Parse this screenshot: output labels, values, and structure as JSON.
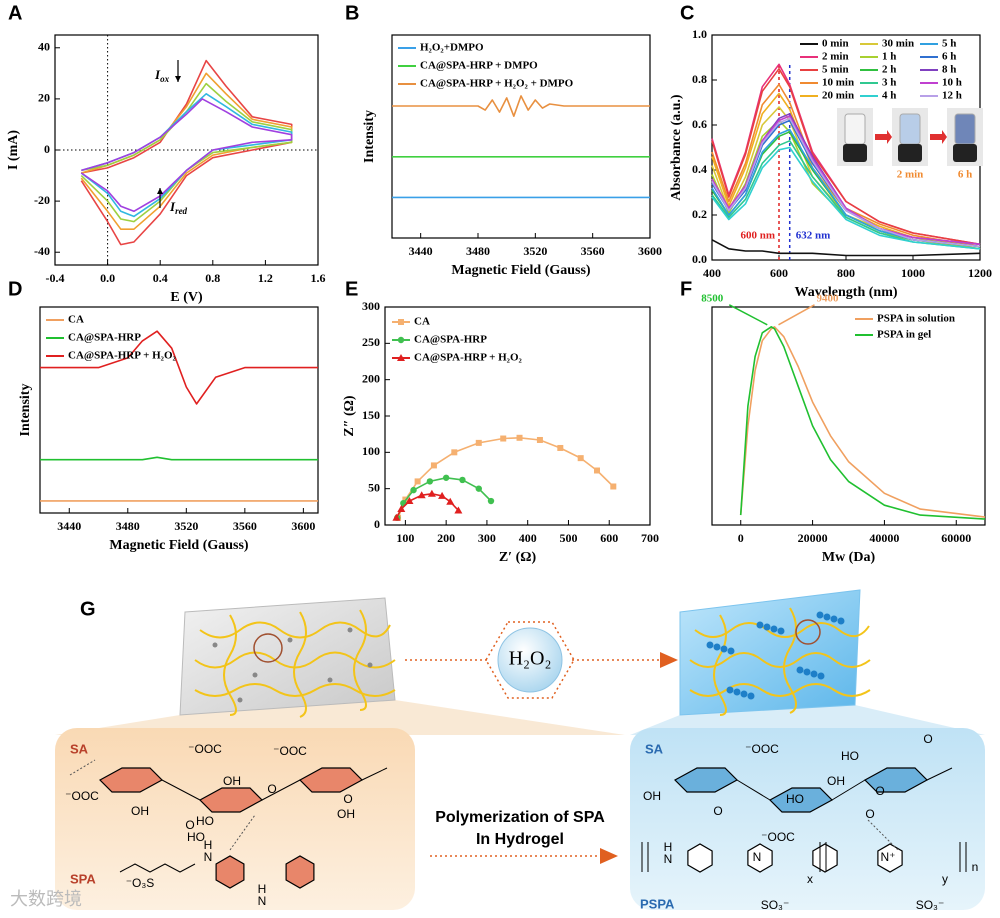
{
  "chart_data": [
    {
      "panel": "A",
      "type": "line",
      "xlabel": "E (V)",
      "ylabel": "I (mA)",
      "xlim": [
        -0.4,
        1.6
      ],
      "xticks": [
        -0.4,
        {
          "value": 0,
          "label": "0.0"
        },
        0.4,
        0.8,
        1.2,
        1.6
      ],
      "ylim": [
        -45,
        45
      ],
      "yticks": [
        -40,
        -20,
        0,
        20,
        40
      ],
      "zero_lines": true,
      "grid": false,
      "annotations": [
        {
          "text": "I",
          "sub": "ox"
        },
        {
          "text": "I",
          "sub": "red"
        }
      ],
      "series": [
        {
          "color": "#e84545",
          "x": [
            -0.2,
            0,
            0.2,
            0.4,
            0.6,
            0.75,
            0.9,
            1.1,
            1.4,
            1.4,
            1.1,
            0.8,
            0.6,
            0.4,
            0.2,
            0.1,
            0,
            -0.2
          ],
          "values": [
            -9,
            -7,
            -3,
            3,
            18,
            35,
            25,
            13,
            10,
            3,
            0,
            -3,
            -10,
            -25,
            -36,
            -37,
            -28,
            -12
          ]
        },
        {
          "color": "#f0a030",
          "x": [
            -0.2,
            0,
            0.2,
            0.4,
            0.6,
            0.75,
            0.9,
            1.1,
            1.4,
            1.4,
            1.1,
            0.8,
            0.6,
            0.4,
            0.2,
            0.1,
            0,
            -0.2
          ],
          "values": [
            -9,
            -6,
            -2,
            4,
            17,
            30,
            22,
            12,
            9,
            3,
            1,
            -2,
            -9,
            -22,
            -31,
            -31,
            -24,
            -11
          ]
        },
        {
          "color": "#9ed040",
          "x": [
            -0.2,
            0,
            0.2,
            0.4,
            0.6,
            0.75,
            0.9,
            1.1,
            1.4,
            1.4,
            1.1,
            0.8,
            0.6,
            0.4,
            0.2,
            0.1,
            0,
            -0.2
          ],
          "values": [
            -8,
            -6,
            -2,
            4,
            15,
            26,
            19,
            11,
            8,
            3,
            1,
            -1,
            -8,
            -20,
            -28,
            -27,
            -20,
            -10
          ]
        },
        {
          "color": "#30b8e0",
          "x": [
            -0.2,
            0,
            0.2,
            0.4,
            0.6,
            0.75,
            0.9,
            1.1,
            1.4,
            1.4,
            1.1,
            0.8,
            0.6,
            0.4,
            0.2,
            0.1,
            0,
            -0.2
          ],
          "values": [
            -8,
            -5,
            -1,
            5,
            15,
            22,
            17,
            10,
            7,
            4,
            2,
            0,
            -8,
            -19,
            -26,
            -24,
            -17,
            -9
          ]
        },
        {
          "color": "#a040e0",
          "x": [
            -0.2,
            0,
            0.2,
            0.4,
            0.6,
            0.72,
            0.9,
            1.1,
            1.4,
            1.4,
            1.1,
            0.8,
            0.6,
            0.4,
            0.2,
            0.1,
            0,
            -0.2
          ],
          "values": [
            -8,
            -5,
            -1,
            5,
            14,
            20,
            15,
            9,
            6,
            4,
            3,
            0,
            -8,
            -18,
            -24,
            -22,
            -16,
            -9
          ]
        }
      ]
    },
    {
      "panel": "B",
      "type": "line",
      "xlabel": "Magnetic Field (Gauss)",
      "ylabel": "Intensity",
      "xlim": [
        3420,
        3600
      ],
      "xticks": [
        3440,
        3480,
        3520,
        3560,
        3600
      ],
      "ylim": [
        0,
        10
      ],
      "legend": "upper left",
      "x": [
        3420,
        3460,
        3480,
        3485,
        3490,
        3495,
        3500,
        3505,
        3510,
        3515,
        3520,
        3525,
        3530,
        3540,
        3560,
        3600
      ],
      "series": [
        {
          "name": "H₂O₂+DMPO",
          "color": "#3aa0e8",
          "values": [
            2,
            2,
            2,
            2,
            2,
            2,
            2,
            2,
            2,
            2,
            2,
            2,
            2,
            2,
            2,
            2
          ]
        },
        {
          "name": "CA@SPA-HRP + DMPO",
          "color": "#40d040",
          "values": [
            4,
            4,
            4,
            4,
            4,
            4,
            4,
            4,
            4,
            4,
            4,
            4,
            4,
            4,
            4,
            4
          ]
        },
        {
          "name": "CA@SPA-HRP + H₂O₂ + DMPO",
          "color": "#e89040",
          "values": [
            6.5,
            6.5,
            6.5,
            6.3,
            6.8,
            6.2,
            6.9,
            6.0,
            7.0,
            6.3,
            6.8,
            6.4,
            6.6,
            6.5,
            6.5,
            6.5
          ]
        }
      ]
    },
    {
      "panel": "C",
      "type": "line",
      "xlabel": "Wavelength (nm)",
      "ylabel": "Absorbance (a.u.)",
      "xlim": [
        400,
        1200
      ],
      "xticks": [
        400,
        600,
        800,
        1000,
        1200
      ],
      "ylim": [
        0,
        1.0
      ],
      "yticks": [
        {
          "value": 0,
          "label": "0.0"
        },
        0.2,
        0.4,
        0.6,
        0.8,
        {
          "value": 1.0,
          "label": "1.0"
        }
      ],
      "legend": "upper right",
      "annotations": [
        {
          "text": "600 nm",
          "x": 600,
          "color": "#e02020"
        },
        {
          "text": "632 nm",
          "x": 632,
          "color": "#2030d0"
        }
      ],
      "inset_labels": [
        "2 min",
        "6 h"
      ],
      "x": [
        400,
        450,
        500,
        550,
        600,
        632,
        700,
        800,
        900,
        1000,
        1200
      ],
      "series": [
        {
          "name": "0 min",
          "color": "#111111",
          "values": [
            0.09,
            0.05,
            0.04,
            0.04,
            0.03,
            0.03,
            0.03,
            0.02,
            0.02,
            0.02,
            0.03
          ]
        },
        {
          "name": "2 min",
          "color": "#e8307a",
          "values": [
            0.54,
            0.29,
            0.48,
            0.77,
            0.87,
            0.78,
            0.48,
            0.26,
            0.17,
            0.12,
            0.07
          ]
        },
        {
          "name": "5 min",
          "color": "#e84040",
          "values": [
            0.53,
            0.28,
            0.47,
            0.75,
            0.85,
            0.77,
            0.47,
            0.26,
            0.17,
            0.12,
            0.07
          ]
        },
        {
          "name": "10 min",
          "color": "#f08a30",
          "values": [
            0.48,
            0.26,
            0.43,
            0.69,
            0.78,
            0.7,
            0.43,
            0.23,
            0.16,
            0.11,
            0.06
          ]
        },
        {
          "name": "20 min",
          "color": "#f0b020",
          "values": [
            0.46,
            0.24,
            0.41,
            0.65,
            0.74,
            0.67,
            0.41,
            0.22,
            0.15,
            0.1,
            0.06
          ]
        },
        {
          "name": "30 min",
          "color": "#d8c838",
          "values": [
            0.42,
            0.22,
            0.37,
            0.6,
            0.68,
            0.62,
            0.37,
            0.2,
            0.14,
            0.1,
            0.05
          ]
        },
        {
          "name": "1 h",
          "color": "#a8d030",
          "values": [
            0.38,
            0.21,
            0.34,
            0.55,
            0.62,
            0.57,
            0.34,
            0.19,
            0.12,
            0.09,
            0.05
          ]
        },
        {
          "name": "2 h",
          "color": "#30c040",
          "values": [
            0.31,
            0.2,
            0.29,
            0.47,
            0.55,
            0.57,
            0.4,
            0.2,
            0.13,
            0.09,
            0.06
          ]
        },
        {
          "name": "3 h",
          "color": "#30c890",
          "values": [
            0.29,
            0.19,
            0.27,
            0.43,
            0.51,
            0.53,
            0.37,
            0.19,
            0.12,
            0.08,
            0.05
          ]
        },
        {
          "name": "4 h",
          "color": "#30d0d0",
          "values": [
            0.28,
            0.18,
            0.25,
            0.41,
            0.49,
            0.5,
            0.35,
            0.18,
            0.11,
            0.08,
            0.05
          ]
        },
        {
          "name": "5 h",
          "color": "#30a0e0",
          "values": [
            0.32,
            0.2,
            0.29,
            0.48,
            0.56,
            0.58,
            0.41,
            0.2,
            0.13,
            0.09,
            0.06
          ]
        },
        {
          "name": "6 h",
          "color": "#3070d0",
          "values": [
            0.34,
            0.22,
            0.31,
            0.51,
            0.6,
            0.62,
            0.43,
            0.22,
            0.14,
            0.09,
            0.06
          ]
        },
        {
          "name": "8 h",
          "color": "#8040c0",
          "values": [
            0.36,
            0.23,
            0.33,
            0.53,
            0.63,
            0.65,
            0.46,
            0.23,
            0.14,
            0.1,
            0.07
          ]
        },
        {
          "name": "10 h",
          "color": "#c040d0",
          "values": [
            0.36,
            0.23,
            0.33,
            0.53,
            0.62,
            0.64,
            0.45,
            0.23,
            0.14,
            0.1,
            0.07
          ]
        },
        {
          "name": "12 h",
          "color": "#b8a0e8",
          "values": [
            0.35,
            0.22,
            0.32,
            0.52,
            0.61,
            0.63,
            0.44,
            0.22,
            0.14,
            0.09,
            0.06
          ]
        }
      ]
    },
    {
      "panel": "D",
      "type": "line",
      "xlabel": "Magnetic Field (Gauss)",
      "ylabel": "Intensity",
      "xlim": [
        3420,
        3610
      ],
      "xticks": [
        3440,
        3480,
        3520,
        3560,
        3600
      ],
      "ylim": [
        0,
        8.5
      ],
      "legend": "upper left",
      "x": [
        3420,
        3460,
        3480,
        3490,
        3500,
        3510,
        3520,
        3527,
        3540,
        3560,
        3610
      ],
      "series": [
        {
          "name": "CA",
          "color": "#f0a060",
          "values": [
            0.5,
            0.5,
            0.5,
            0.5,
            0.5,
            0.5,
            0.5,
            0.5,
            0.5,
            0.5,
            0.5
          ]
        },
        {
          "name": "CA@SPA-HRP",
          "color": "#20c030",
          "values": [
            2.2,
            2.2,
            2.2,
            2.2,
            2.3,
            2.2,
            2.2,
            2.2,
            2.2,
            2.2,
            2.2
          ]
        },
        {
          "name": "CA@SPA-HRP + H₂O₂",
          "color": "#e02020",
          "values": [
            6,
            6,
            6.4,
            7.1,
            7.5,
            6.8,
            5.2,
            4.5,
            5.6,
            6,
            6
          ]
        }
      ]
    },
    {
      "panel": "E",
      "type": "scatter",
      "xlabel": "Z′ (Ω)",
      "ylabel": "Z″ (Ω)",
      "xlim": [
        50,
        700
      ],
      "xticks": [
        100,
        200,
        300,
        400,
        500,
        600,
        700
      ],
      "ylim": [
        0,
        300
      ],
      "yticks": [
        0,
        50,
        100,
        150,
        200,
        250,
        300
      ],
      "legend": "upper left",
      "series": [
        {
          "name": "CA",
          "color": "#f5b070",
          "marker": "square",
          "x": [
            82,
            100,
            130,
            170,
            220,
            280,
            340,
            380,
            430,
            480,
            530,
            570,
            610
          ],
          "values": [
            10,
            35,
            60,
            82,
            100,
            113,
            119,
            120,
            117,
            106,
            92,
            75,
            53
          ]
        },
        {
          "name": "CA@SPA-HRP",
          "color": "#40c050",
          "marker": "circle",
          "x": [
            80,
            95,
            120,
            160,
            200,
            240,
            280,
            310
          ],
          "values": [
            10,
            30,
            48,
            60,
            65,
            62,
            50,
            33
          ]
        },
        {
          "name": "CA@SPA-HRP + H₂O₂",
          "color": "#e02020",
          "marker": "triangle",
          "x": [
            78,
            90,
            110,
            140,
            165,
            190,
            210,
            230
          ],
          "values": [
            10,
            22,
            33,
            41,
            43,
            40,
            32,
            20
          ]
        }
      ]
    },
    {
      "panel": "F",
      "type": "line",
      "xlabel": "Mw (Da)",
      "xlim": [
        -8000,
        68000
      ],
      "xticks": [
        0,
        20000,
        40000,
        60000
      ],
      "ylim": [
        0,
        1.1
      ],
      "legend": "upper right",
      "annotations": [
        {
          "text": "8500",
          "x": 8500,
          "color": "#20c030"
        },
        {
          "text": "9400",
          "x": 9400,
          "color": "#f0a060"
        }
      ],
      "x": [
        0,
        2000,
        4000,
        6000,
        8500,
        9400,
        12000,
        16000,
        20000,
        25000,
        30000,
        40000,
        50000,
        68000
      ],
      "series": [
        {
          "name": "PSPA in solution",
          "color": "#f0a060",
          "values": [
            0.05,
            0.5,
            0.78,
            0.93,
            0.99,
            1.0,
            0.95,
            0.8,
            0.62,
            0.45,
            0.32,
            0.16,
            0.08,
            0.04
          ]
        },
        {
          "name": "PSPA in gel",
          "color": "#20c030",
          "values": [
            0.05,
            0.6,
            0.85,
            0.97,
            1.0,
            0.99,
            0.9,
            0.7,
            0.5,
            0.33,
            0.22,
            0.1,
            0.05,
            0.03
          ]
        }
      ]
    }
  ],
  "diagram": {
    "panel": "G",
    "reagent": "H₂O₂",
    "left": {
      "sa": "SA",
      "spa": "SPA"
    },
    "right": {
      "sa": "SA",
      "pspa": "PSPA"
    },
    "arrow_label": [
      "Polymerization of SPA",
      "In Hydrogel"
    ],
    "chem_left": [
      "⁻OOC",
      "OH",
      "O",
      "HO",
      "⁻OOC",
      "OH",
      "O",
      "HO",
      "O",
      "⁻OOC",
      "OH",
      "⁻O₃S",
      "H",
      "N",
      "H",
      "N"
    ],
    "chem_right": [
      "⁻OOC",
      "OH",
      "O",
      "HO",
      "⁻OOC",
      "OH",
      "O",
      "HO",
      "O",
      "O",
      "H",
      "N",
      "N",
      "N⁺",
      "x",
      "y",
      "n",
      "SO₃⁻",
      "SO₃⁻"
    ],
    "watermark": "大数跨境"
  }
}
